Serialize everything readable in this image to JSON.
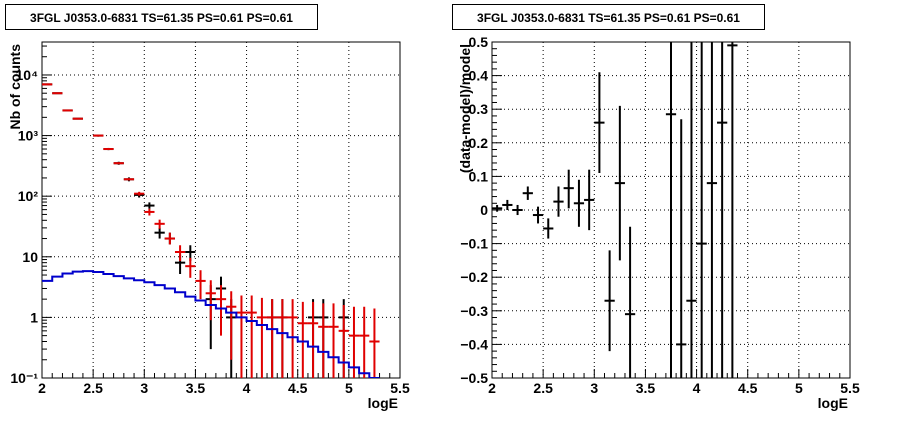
{
  "chart_data": [
    {
      "type": "line",
      "title": "3FGL J0353.0-6831 TS=61.35 PS=0.61 PS=0.61",
      "xlabel": "logE",
      "ylabel": "Nb of counts",
      "log_y": true,
      "xlim": [
        2,
        5.5
      ],
      "ylim": [
        0.1,
        35000
      ],
      "grid": true,
      "x_ticks": [
        "2",
        "2.5",
        "3",
        "3.5",
        "4",
        "4.5",
        "5",
        "5.5"
      ],
      "y_ticks": [
        "10⁴",
        "10³",
        "10²",
        "10",
        "1",
        "10⁻¹"
      ],
      "bin_width": 0.1,
      "series": [
        {
          "color": "#000000",
          "points": [
            {
              "x": 2.05,
              "y": 7000,
              "lo": 6900,
              "hi": 7100
            },
            {
              "x": 2.15,
              "y": 5000,
              "lo": 4900,
              "hi": 5100
            },
            {
              "x": 2.25,
              "y": 2600,
              "lo": 2550,
              "hi": 2650
            },
            {
              "x": 2.35,
              "y": 1900,
              "lo": 1850,
              "hi": 1950
            },
            {
              "x": 2.55,
              "y": 1000,
              "lo": 960,
              "hi": 1040
            },
            {
              "x": 2.65,
              "y": 600,
              "lo": 575,
              "hi": 625
            },
            {
              "x": 2.75,
              "y": 350,
              "lo": 330,
              "hi": 370
            },
            {
              "x": 2.85,
              "y": 190,
              "lo": 176,
              "hi": 204
            },
            {
              "x": 2.95,
              "y": 105,
              "lo": 95,
              "hi": 115
            },
            {
              "x": 3.05,
              "y": 70,
              "lo": 62,
              "hi": 79
            },
            {
              "x": 3.15,
              "y": 25,
              "lo": 20,
              "hi": 30
            },
            {
              "x": 3.25,
              "y": 20,
              "lo": 16,
              "hi": 25
            },
            {
              "x": 3.35,
              "y": 8,
              "lo": 5.2,
              "hi": 10.8
            },
            {
              "x": 3.45,
              "y": 12,
              "lo": 8.5,
              "hi": 15.5
            },
            {
              "x": 3.65,
              "y": 2,
              "lo": 0.3,
              "hi": 3.4
            },
            {
              "x": 3.75,
              "y": 3,
              "lo": 0.9,
              "hi": 4.7
            },
            {
              "x": 3.85,
              "y": 1,
              "lo": 0.1,
              "hi": 2
            },
            {
              "x": 4.25,
              "y": 1,
              "lo": 0.1,
              "hi": 2
            },
            {
              "x": 4.35,
              "y": 1,
              "lo": 0.1,
              "hi": 2
            },
            {
              "x": 4.65,
              "y": 1,
              "lo": 0.1,
              "hi": 2
            },
            {
              "x": 4.75,
              "y": 1,
              "lo": 0.1,
              "hi": 2
            },
            {
              "x": 4.95,
              "y": 1,
              "lo": 0.1,
              "hi": 2
            }
          ]
        },
        {
          "color": "#e00000",
          "points": [
            {
              "x": 2.05,
              "y": 7000,
              "lo": 6950,
              "hi": 7050
            },
            {
              "x": 2.15,
              "y": 5000,
              "lo": 4950,
              "hi": 5050
            },
            {
              "x": 2.25,
              "y": 2600,
              "lo": 2570,
              "hi": 2630
            },
            {
              "x": 2.35,
              "y": 1900,
              "lo": 1880,
              "hi": 1920
            },
            {
              "x": 2.55,
              "y": 1000,
              "lo": 980,
              "hi": 1020
            },
            {
              "x": 2.65,
              "y": 600,
              "lo": 585,
              "hi": 615
            },
            {
              "x": 2.75,
              "y": 350,
              "lo": 338,
              "hi": 362
            },
            {
              "x": 2.85,
              "y": 190,
              "lo": 182,
              "hi": 198
            },
            {
              "x": 2.95,
              "y": 110,
              "lo": 102,
              "hi": 118
            },
            {
              "x": 3.05,
              "y": 55,
              "lo": 48,
              "hi": 62
            },
            {
              "x": 3.15,
              "y": 35,
              "lo": 29,
              "hi": 41
            },
            {
              "x": 3.25,
              "y": 20,
              "lo": 16,
              "hi": 25
            },
            {
              "x": 3.35,
              "y": 12,
              "lo": 8.5,
              "hi": 15.5
            },
            {
              "x": 3.45,
              "y": 7,
              "lo": 4.5,
              "hi": 9.6
            },
            {
              "x": 3.55,
              "y": 4,
              "lo": 2,
              "hi": 6
            },
            {
              "x": 3.65,
              "y": 2.5,
              "lo": 0.9,
              "hi": 4.1
            },
            {
              "x": 3.75,
              "y": 2,
              "lo": 0.5,
              "hi": 3.4
            },
            {
              "x": 3.85,
              "y": 1.5,
              "lo": 0.2,
              "hi": 2.7
            },
            {
              "x": 3.95,
              "y": 1.2,
              "lo": 0.1,
              "hi": 2.3
            },
            {
              "x": 4.05,
              "y": 1.2,
              "lo": 0.1,
              "hi": 2.3
            },
            {
              "x": 4.15,
              "y": 1,
              "lo": 0.1,
              "hi": 2.1
            },
            {
              "x": 4.25,
              "y": 1,
              "lo": 0.1,
              "hi": 2
            },
            {
              "x": 4.35,
              "y": 1,
              "lo": 0.1,
              "hi": 2
            },
            {
              "x": 4.45,
              "y": 1,
              "lo": 0.1,
              "hi": 2
            },
            {
              "x": 4.55,
              "y": 0.8,
              "lo": 0.1,
              "hi": 1.8
            },
            {
              "x": 4.65,
              "y": 0.8,
              "lo": 0.1,
              "hi": 1.8
            },
            {
              "x": 4.75,
              "y": 0.7,
              "lo": 0.1,
              "hi": 1.7
            },
            {
              "x": 4.85,
              "y": 0.7,
              "lo": 0.1,
              "hi": 1.7
            },
            {
              "x": 4.95,
              "y": 0.6,
              "lo": 0.1,
              "hi": 1.6
            },
            {
              "x": 5.05,
              "y": 0.5,
              "lo": 0.1,
              "hi": 1.5
            },
            {
              "x": 5.15,
              "y": 0.5,
              "lo": 0.1,
              "hi": 1.5
            },
            {
              "x": 5.25,
              "y": 0.4,
              "lo": 0.1,
              "hi": 1.4
            }
          ]
        },
        {
          "color": "#0000cc",
          "style": "step",
          "edges_from": 2.0,
          "values": [
            4,
            4.7,
            5.3,
            5.7,
            5.8,
            5.6,
            5.2,
            4.8,
            4.4,
            4.1,
            3.8,
            3.4,
            3.0,
            2.6,
            2.2,
            1.9,
            1.6,
            1.4,
            1.2,
            1.0,
            0.87,
            0.75,
            0.64,
            0.55,
            0.47,
            0.4,
            0.33,
            0.27,
            0.22,
            0.18,
            0.15,
            0.12,
            0.1
          ]
        }
      ]
    },
    {
      "type": "scatter",
      "title": "3FGL J0353.0-6831 TS=61.35 PS=0.61 PS=0.61",
      "xlabel": "logE",
      "ylabel": "(data-model)/model",
      "xlim": [
        2,
        5.5
      ],
      "ylim": [
        -0.5,
        0.5
      ],
      "grid": true,
      "x_ticks": [
        "2",
        "2.5",
        "3",
        "3.5",
        "4",
        "4.5",
        "5",
        "5.5"
      ],
      "y_ticks": [
        "0.5",
        "0.4",
        "0.3",
        "0.2",
        "0.1",
        "0",
        "−0.1",
        "−0.2",
        "−0.3",
        "−0.4",
        "−0.5"
      ],
      "bin_width": 0.1,
      "series": [
        {
          "color": "#000000",
          "points": [
            {
              "x": 2.05,
              "y": 0.005,
              "lo": -0.005,
              "hi": 0.015
            },
            {
              "x": 2.15,
              "y": 0.015,
              "lo": 0.0,
              "hi": 0.03
            },
            {
              "x": 2.25,
              "y": 0.0,
              "lo": -0.015,
              "hi": 0.015
            },
            {
              "x": 2.35,
              "y": 0.05,
              "lo": 0.03,
              "hi": 0.07
            },
            {
              "x": 2.45,
              "y": -0.015,
              "lo": -0.04,
              "hi": 0.01
            },
            {
              "x": 2.55,
              "y": -0.055,
              "lo": -0.085,
              "hi": -0.025
            },
            {
              "x": 2.65,
              "y": 0.025,
              "lo": -0.02,
              "hi": 0.07
            },
            {
              "x": 2.75,
              "y": 0.065,
              "lo": 0.005,
              "hi": 0.12
            },
            {
              "x": 2.85,
              "y": 0.02,
              "lo": -0.05,
              "hi": 0.09
            },
            {
              "x": 2.95,
              "y": 0.03,
              "lo": -0.06,
              "hi": 0.12
            },
            {
              "x": 3.05,
              "y": 0.26,
              "lo": 0.11,
              "hi": 0.41
            },
            {
              "x": 3.15,
              "y": -0.27,
              "lo": -0.42,
              "hi": -0.12
            },
            {
              "x": 3.25,
              "y": 0.08,
              "lo": -0.15,
              "hi": 0.31
            },
            {
              "x": 3.35,
              "y": -0.31,
              "lo": -0.5,
              "hi": -0.05
            },
            {
              "x": 3.75,
              "y": 0.285,
              "lo": -0.5,
              "hi": 0.5
            },
            {
              "x": 3.85,
              "y": -0.4,
              "lo": -0.5,
              "hi": 0.27
            },
            {
              "x": 3.95,
              "y": -0.27,
              "lo": -0.5,
              "hi": 0.5
            },
            {
              "x": 4.05,
              "y": -0.1,
              "lo": -0.5,
              "hi": 0.5
            },
            {
              "x": 4.15,
              "y": 0.08,
              "lo": -0.5,
              "hi": 0.5
            },
            {
              "x": 4.25,
              "y": 0.26,
              "lo": -0.5,
              "hi": 0.5
            },
            {
              "x": 4.35,
              "y": 0.49,
              "lo": -0.5,
              "hi": 0.5
            }
          ]
        }
      ]
    }
  ]
}
